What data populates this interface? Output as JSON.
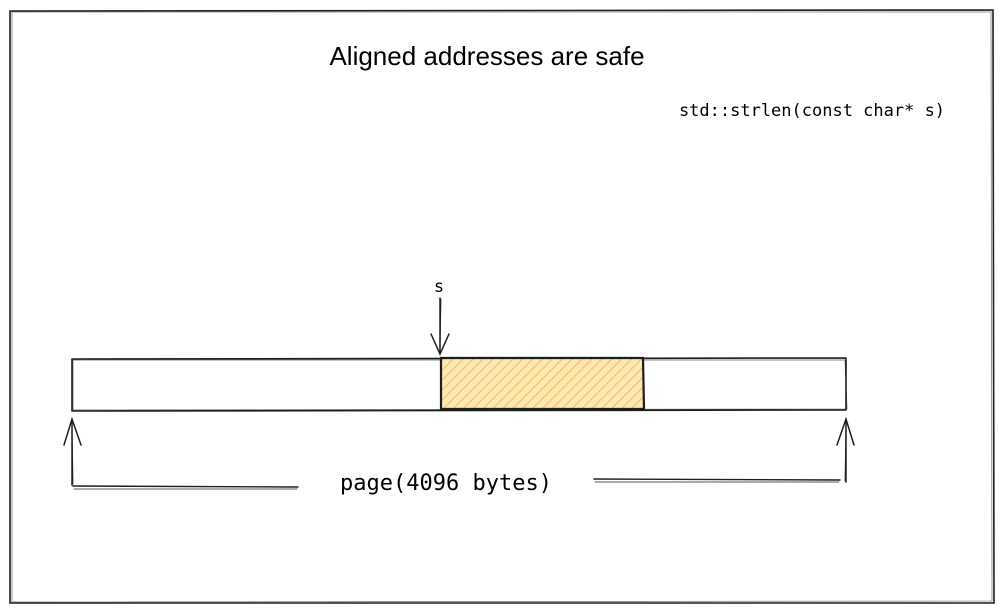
{
  "diagram": {
    "title": "Aligned addresses are safe",
    "signature": "std::strlen(const char* s)",
    "pointer_label": "s",
    "page_label": "page(4096 bytes)",
    "colors": {
      "stroke": "#1e1e1e",
      "highlight_fill": "#fde8b5",
      "highlight_hatch": "#f0b13a"
    }
  }
}
